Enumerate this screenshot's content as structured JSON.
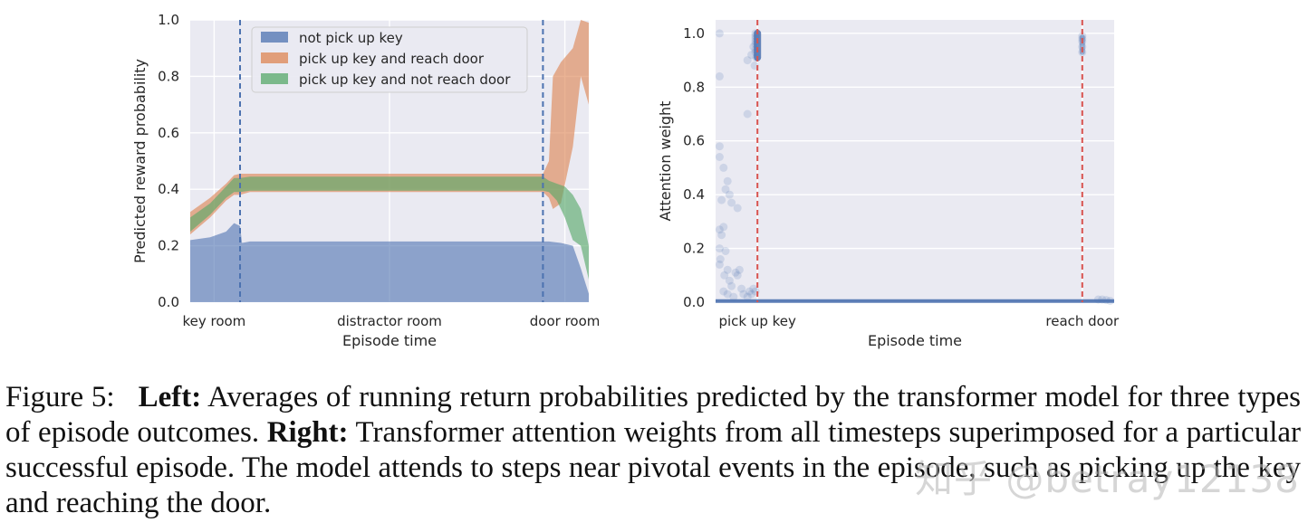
{
  "chart_data": [
    {
      "type": "area",
      "xlabel": "Episode time",
      "ylabel": "Predicted reward probability",
      "xticks": [
        "key room",
        "distractor room",
        "door room"
      ],
      "yticks": [
        "0.0",
        "0.2",
        "0.4",
        "0.6",
        "0.8",
        "1.0"
      ],
      "ylim": [
        0,
        1
      ],
      "xlim": [
        0,
        100
      ],
      "grid": true,
      "legend_position": "top-center",
      "vlines_x": [
        12.5,
        88.5
      ],
      "series": [
        {
          "name": "not pick up key",
          "color": "#4c72b0",
          "x": [
            0,
            5,
            9,
            11,
            12.5,
            13,
            15,
            20,
            30,
            40,
            50,
            60,
            70,
            80,
            86,
            88.5,
            90,
            93,
            96,
            98,
            100
          ],
          "lower": [
            0,
            0,
            0,
            0,
            0,
            0,
            0,
            0,
            0,
            0,
            0,
            0,
            0,
            0,
            0,
            0,
            0,
            0,
            0,
            0,
            0
          ],
          "upper": [
            0.22,
            0.23,
            0.25,
            0.28,
            0.27,
            0.21,
            0.215,
            0.215,
            0.215,
            0.215,
            0.215,
            0.215,
            0.215,
            0.215,
            0.215,
            0.215,
            0.215,
            0.21,
            0.2,
            0.12,
            0.03
          ]
        },
        {
          "name": "pick up key and reach door",
          "color": "#dd8452",
          "x": [
            0,
            5,
            9,
            11,
            12.5,
            15,
            20,
            30,
            40,
            50,
            60,
            70,
            80,
            86,
            88.5,
            90,
            91,
            93,
            96,
            98,
            100
          ],
          "lower": [
            0.24,
            0.3,
            0.36,
            0.38,
            0.38,
            0.39,
            0.39,
            0.39,
            0.39,
            0.39,
            0.39,
            0.39,
            0.39,
            0.39,
            0.39,
            0.37,
            0.33,
            0.35,
            0.55,
            0.8,
            0.7
          ],
          "upper": [
            0.32,
            0.37,
            0.42,
            0.45,
            0.455,
            0.455,
            0.455,
            0.455,
            0.455,
            0.455,
            0.455,
            0.455,
            0.455,
            0.455,
            0.455,
            0.5,
            0.8,
            0.85,
            0.9,
            1.0,
            0.99
          ]
        },
        {
          "name": "pick up key and not reach door",
          "color": "#55a868",
          "x": [
            0,
            5,
            9,
            11,
            12.5,
            15,
            20,
            30,
            40,
            50,
            60,
            70,
            80,
            86,
            88.5,
            90,
            92,
            94,
            96,
            98,
            100
          ],
          "lower": [
            0.25,
            0.31,
            0.37,
            0.39,
            0.39,
            0.395,
            0.395,
            0.395,
            0.395,
            0.395,
            0.395,
            0.395,
            0.395,
            0.395,
            0.395,
            0.39,
            0.36,
            0.3,
            0.22,
            0.2,
            0.08
          ],
          "upper": [
            0.3,
            0.35,
            0.41,
            0.44,
            0.44,
            0.445,
            0.445,
            0.445,
            0.445,
            0.445,
            0.445,
            0.445,
            0.445,
            0.445,
            0.445,
            0.43,
            0.42,
            0.41,
            0.38,
            0.33,
            0.2
          ]
        }
      ]
    },
    {
      "type": "scatter",
      "xlabel": "Episode time",
      "ylabel": "Attention weight",
      "xticks": [
        "pick up key",
        "reach door"
      ],
      "yticks": [
        "0.0",
        "0.2",
        "0.4",
        "0.6",
        "0.8",
        "1.0"
      ],
      "ylim": [
        0,
        1.05
      ],
      "xlim": [
        0,
        100
      ],
      "grid": true,
      "vlines_x": [
        10.5,
        92
      ],
      "marker_color": "#4c72b0",
      "points": [
        [
          1,
          1.0
        ],
        [
          1,
          0.84
        ],
        [
          1,
          0.58
        ],
        [
          1,
          0.54
        ],
        [
          1.5,
          0.38
        ],
        [
          1,
          0.27
        ],
        [
          1.5,
          0.25
        ],
        [
          1,
          0.2
        ],
        [
          1.2,
          0.16
        ],
        [
          1,
          0.14
        ],
        [
          2,
          0.5
        ],
        [
          2.5,
          0.42
        ],
        [
          3,
          0.45
        ],
        [
          3.5,
          0.4
        ],
        [
          4,
          0.37
        ],
        [
          5.5,
          0.35
        ],
        [
          2,
          0.28
        ],
        [
          2.5,
          0.19
        ],
        [
          3,
          0.12
        ],
        [
          2.2,
          0.1
        ],
        [
          3.5,
          0.08
        ],
        [
          4,
          0.06
        ],
        [
          5,
          0.11
        ],
        [
          5.5,
          0.1
        ],
        [
          6,
          0.12
        ],
        [
          6.5,
          0.05
        ],
        [
          2,
          0.04
        ],
        [
          3,
          0.03
        ],
        [
          4.5,
          0.02
        ],
        [
          7,
          0.03
        ],
        [
          8,
          0.7
        ],
        [
          8,
          0.9
        ],
        [
          9,
          0.92
        ],
        [
          9.5,
          0.95
        ],
        [
          10,
          0.98
        ],
        [
          10,
          1.0
        ],
        [
          10,
          0.99
        ],
        [
          10,
          0.97
        ],
        [
          10,
          0.96
        ],
        [
          10,
          0.94
        ],
        [
          10,
          0.93
        ],
        [
          10.2,
          0.91
        ],
        [
          9.8,
          0.88
        ],
        [
          8.5,
          0.04
        ],
        [
          9,
          0.03
        ],
        [
          9.5,
          0.05
        ],
        [
          10,
          0.04
        ],
        [
          8,
          0.02
        ],
        [
          92,
          0.99
        ],
        [
          92,
          0.97
        ],
        [
          92,
          0.95
        ],
        [
          92,
          0.93
        ],
        [
          92,
          0.98
        ],
        [
          96,
          0.01
        ],
        [
          97,
          0.01
        ],
        [
          98,
          0.008
        ],
        [
          99,
          0.005
        ]
      ]
    }
  ],
  "caption": {
    "figure_label": "Figure 5:",
    "left_label": "Left:",
    "left_text": "Averages of running return probabilities predicted by the transformer model for three types of episode outcomes.",
    "right_label": "Right:",
    "right_text": "Transformer attention weights from all timesteps superimposed for a particular successful episode. The model attends to steps near pivotal events in the episode, such as picking up the key and reaching the door."
  },
  "watermark": "知乎 @betray12138"
}
